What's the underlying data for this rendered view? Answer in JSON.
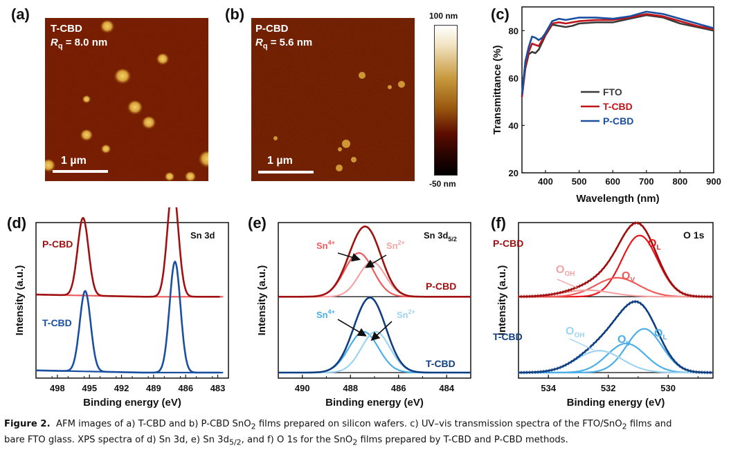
{
  "figure": {
    "panel_labels": [
      "(a)",
      "(b)",
      "(c)",
      "(d)",
      "(e)",
      "(f)"
    ],
    "afm_a": {
      "sample": "T-CBD",
      "rq_symbol": "R",
      "rq_sub": "q",
      "rq_value": "= 8.0 nm",
      "scalebar": "1 µm"
    },
    "afm_b": {
      "sample": "P-CBD",
      "rq_symbol": "R",
      "rq_sub": "q",
      "rq_value": "= 5.6 nm",
      "scalebar": "1 µm"
    },
    "colorbar": {
      "max_label": "100 nm",
      "min_label": "-50 nm"
    },
    "caption": {
      "figure_label": "Figure 2.",
      "line1": "AFM images of a) T-CBD and b) P-CBD SnO",
      "line1_sub": "2",
      "line1_b": " films prepared on silicon wafers. c) UV–vis transmission spectra of the FTO/SnO",
      "line1_b_sub": "2",
      "line1_c": " films and",
      "line2": "bare FTO glass. XPS spectra of d) Sn 3d, e) Sn 3d",
      "line2_sub": "5/2",
      "line2_b": ", and f) O 1s for the SnO",
      "line2_b_sub": "2",
      "line2_c": " films prepared by T-CBD and P-CBD methods."
    }
  },
  "colors": {
    "fto": "#3a3a3a",
    "tcbd_c": "#c0141b",
    "pcbd_c": "#1a4fa0",
    "red_dark": "#a01010",
    "red_mid": "#ee5a5a",
    "red_light": "#f4a3a3",
    "red_bright": "#e8151b",
    "blue_dark": "#0f3f82",
    "blue_mid": "#4aaee8",
    "blue_light": "#9fd3f2"
  },
  "chart_data": [
    {
      "id": "c",
      "type": "line",
      "title": "",
      "xlabel": "Wavelength (nm)",
      "ylabel": "Transmittance (%)",
      "xlim": [
        330,
        900
      ],
      "ylim": [
        20,
        90
      ],
      "xticks": [
        400,
        500,
        600,
        700,
        800,
        900
      ],
      "yticks": [
        20,
        40,
        60,
        80
      ],
      "legend": "center",
      "series": [
        {
          "name": "FTO",
          "color_key": "fto",
          "x": [
            330,
            340,
            350,
            360,
            370,
            380,
            390,
            400,
            420,
            440,
            460,
            480,
            500,
            550,
            600,
            650,
            700,
            750,
            800,
            850,
            900
          ],
          "y": [
            52,
            64,
            70,
            71,
            70.5,
            72,
            75,
            78,
            82.5,
            82,
            81.5,
            82,
            83,
            83.5,
            83.5,
            85,
            86.5,
            85.5,
            83,
            81.5,
            80
          ]
        },
        {
          "name": "T-CBD",
          "color_key": "tcbd_c",
          "x": [
            330,
            340,
            350,
            360,
            370,
            380,
            390,
            400,
            420,
            440,
            460,
            480,
            500,
            550,
            600,
            650,
            700,
            750,
            800,
            850,
            900
          ],
          "y": [
            52,
            65,
            71,
            74.5,
            74,
            73.5,
            76,
            78.5,
            83,
            83.5,
            83,
            83.5,
            84,
            84.5,
            84.5,
            85.5,
            87,
            86,
            84,
            82,
            80.5
          ]
        },
        {
          "name": "P-CBD",
          "color_key": "pcbd_c",
          "x": [
            330,
            340,
            350,
            360,
            370,
            380,
            390,
            400,
            420,
            440,
            460,
            480,
            500,
            550,
            600,
            650,
            700,
            750,
            800,
            850,
            900
          ],
          "y": [
            53,
            67,
            73,
            77.5,
            77,
            76,
            77,
            79,
            84,
            85,
            84.5,
            85,
            85.5,
            85.5,
            85,
            86,
            88,
            87,
            85,
            83,
            81
          ]
        }
      ]
    },
    {
      "id": "d",
      "type": "line",
      "title": "Sn 3d",
      "xlabel": "Binding energy (eV)",
      "ylabel": "Intensity (a.u.)",
      "xlim": [
        500,
        482
      ],
      "x_reversed": true,
      "xticks": [
        498,
        495,
        492,
        489,
        486,
        483
      ],
      "series": [
        {
          "name": "P-CBD",
          "color_key": "red_dark",
          "baseline_color_key": "red_mid",
          "peaks": [
            {
              "center": 495.6,
              "height": 0.56,
              "fwhm": 1.2
            },
            {
              "center": 487.2,
              "height": 0.8,
              "fwhm": 1.2
            }
          ],
          "offset": 0.52
        },
        {
          "name": "T-CBD",
          "color_key": "pcbd_c",
          "baseline_color_key": "pcbd_c",
          "peaks": [
            {
              "center": 495.4,
              "height": 0.58,
              "fwhm": 1.2
            },
            {
              "center": 487.0,
              "height": 0.8,
              "fwhm": 1.2
            }
          ],
          "offset": 0.0
        }
      ]
    },
    {
      "id": "e",
      "type": "line",
      "title": "Sn 3d",
      "title_sub": "5/2",
      "xlabel": "Binding energy (eV)",
      "ylabel": "Intensity (a.u.)",
      "xlim": [
        491,
        483
      ],
      "x_reversed": true,
      "xticks": [
        490,
        488,
        486,
        484
      ],
      "groups": [
        {
          "name": "P-CBD",
          "offset": 0.52,
          "label_color_key": "red_dark",
          "envelope": {
            "color_key": "red_dark"
          },
          "components": [
            {
              "name": "Sn4+",
              "label": "Sn",
              "sup": "4+",
              "color_key": "red_mid",
              "center": 487.65,
              "height": 0.3,
              "fwhm": 1.4
            },
            {
              "name": "Sn2+",
              "label": "Sn",
              "sup": "2+",
              "color_key": "red_light",
              "center": 487.1,
              "height": 0.24,
              "fwhm": 1.3
            }
          ]
        },
        {
          "name": "T-CBD",
          "offset": 0.0,
          "label_color_key": "blue_dark",
          "envelope": {
            "color_key": "blue_dark"
          },
          "components": [
            {
              "name": "Sn4+",
              "label": "Sn",
              "sup": "4+",
              "color_key": "blue_mid",
              "center": 487.45,
              "height": 0.28,
              "fwhm": 1.45
            },
            {
              "name": "Sn2+",
              "label": "Sn",
              "sup": "2+",
              "color_key": "blue_light",
              "center": 486.95,
              "height": 0.28,
              "fwhm": 1.4
            }
          ]
        }
      ]
    },
    {
      "id": "f",
      "type": "line",
      "title": "O 1s",
      "xlabel": "Binding energy (eV)",
      "ylabel": "Intensity (a.u.)",
      "xlim": [
        535,
        528.5
      ],
      "x_reversed": true,
      "xticks": [
        534,
        532,
        530
      ],
      "groups": [
        {
          "name": "P-CBD",
          "offset": 0.52,
          "label_color_key": "red_dark",
          "envelope": {
            "color_key": "red_dark"
          },
          "components": [
            {
              "name": "OL",
              "label": "O",
              "sub": "L",
              "color_key": "red_bright",
              "center": 530.95,
              "height": 0.42,
              "fwhm": 1.4
            },
            {
              "name": "OV",
              "label": "O",
              "sub": "V",
              "color_key": "red_mid",
              "center": 531.7,
              "height": 0.13,
              "fwhm": 1.7
            },
            {
              "name": "OOH",
              "label": "O",
              "sub": "OH",
              "color_key": "red_light",
              "center": 532.7,
              "height": 0.045,
              "fwhm": 1.9
            }
          ]
        },
        {
          "name": "T-CBD",
          "offset": 0.0,
          "label_color_key": "blue_dark",
          "envelope": {
            "color_key": "blue_dark"
          },
          "components": [
            {
              "name": "OL",
              "label": "O",
              "sub": "L",
              "color_key": "blue_mid",
              "center": 530.8,
              "height": 0.3,
              "fwhm": 1.4
            },
            {
              "name": "OV",
              "label": "O",
              "sub": "V",
              "color_key": "blue_mid",
              "center": 531.4,
              "height": 0.2,
              "fwhm": 1.5
            },
            {
              "name": "OOH",
              "label": "O",
              "sub": "OH",
              "color_key": "blue_light",
              "center": 532.3,
              "height": 0.15,
              "fwhm": 1.8
            }
          ]
        }
      ]
    }
  ]
}
